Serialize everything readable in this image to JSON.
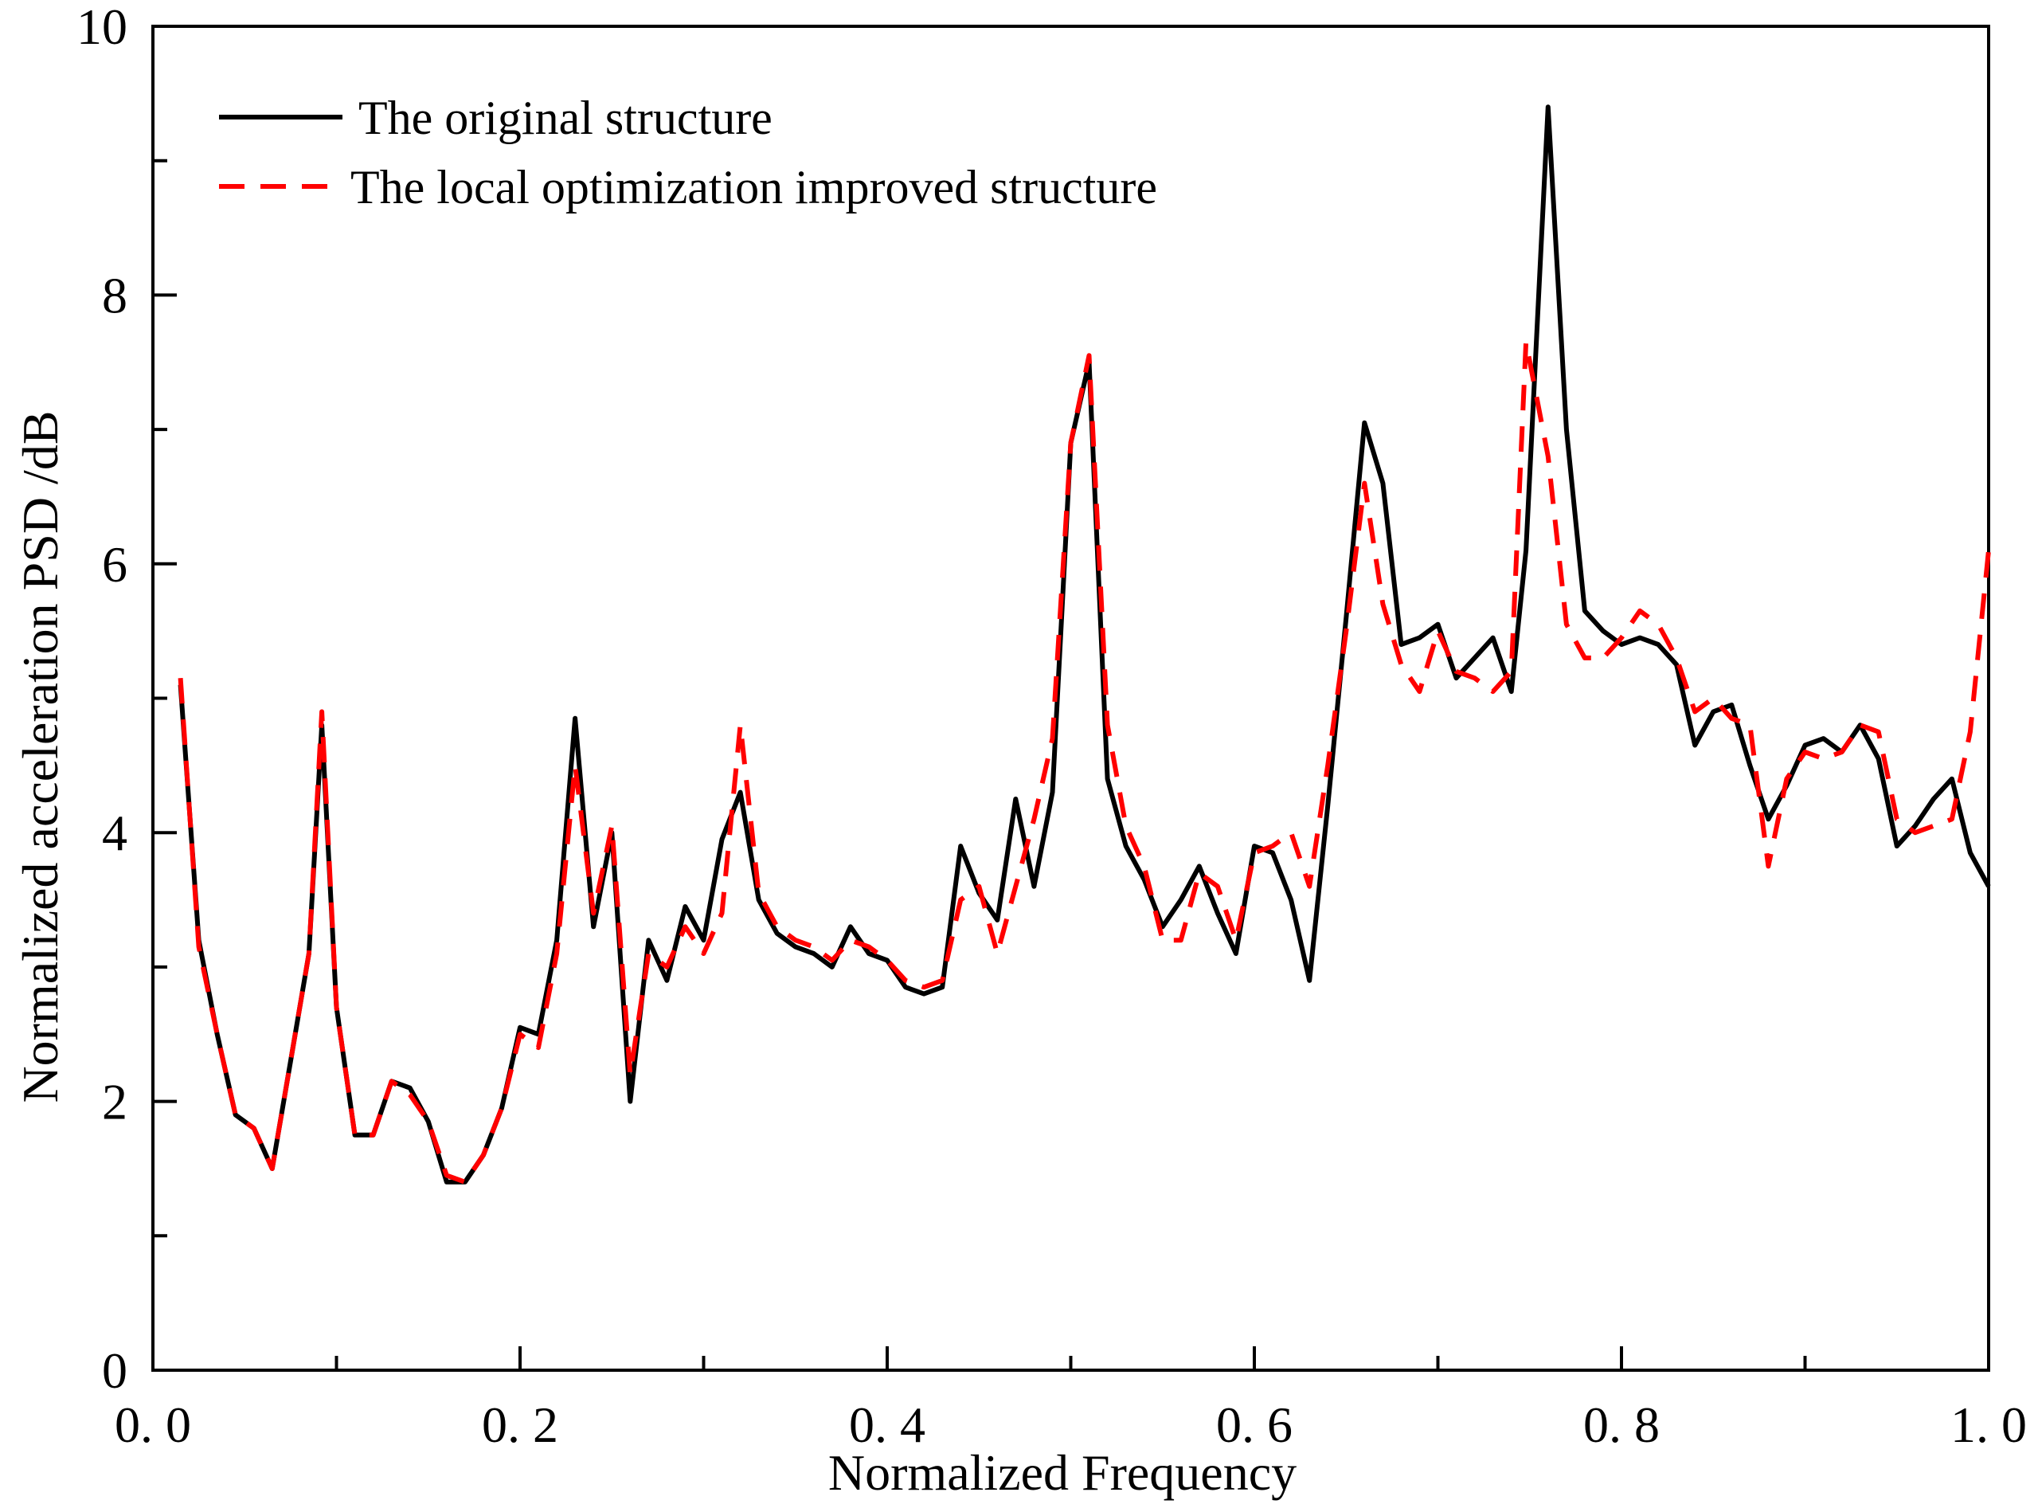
{
  "chart_data": {
    "type": "line",
    "title": "",
    "xlabel": "Normalized Frequency",
    "ylabel": "Normalized acceleration PSD /dB",
    "xlim": [
      0.0,
      1.0
    ],
    "ylim": [
      0,
      10
    ],
    "x_ticks": [
      0.0,
      0.2,
      0.4,
      0.6,
      0.8,
      1.0
    ],
    "x_tick_labels": [
      "0. 0",
      "0. 2",
      "0. 4",
      "0. 6",
      "0. 8",
      "1. 0"
    ],
    "y_ticks": [
      0,
      2,
      4,
      6,
      8,
      10
    ],
    "y_tick_labels": [
      "0",
      "2",
      "4",
      "6",
      "8",
      "10"
    ],
    "y_minor_ticks": [
      1,
      3,
      5,
      7,
      9
    ],
    "x_minor_ticks": [
      0.1,
      0.3,
      0.5,
      0.7,
      0.9
    ],
    "grid": false,
    "legend_position": "top-left",
    "series": [
      {
        "name": "The original structure",
        "color": "#000000",
        "dash": "solid",
        "x": [
          0.015,
          0.025,
          0.035,
          0.045,
          0.055,
          0.065,
          0.075,
          0.085,
          0.092,
          0.1,
          0.11,
          0.12,
          0.13,
          0.14,
          0.15,
          0.16,
          0.17,
          0.18,
          0.19,
          0.2,
          0.21,
          0.22,
          0.23,
          0.24,
          0.25,
          0.26,
          0.27,
          0.28,
          0.29,
          0.3,
          0.31,
          0.32,
          0.33,
          0.34,
          0.35,
          0.36,
          0.37,
          0.38,
          0.39,
          0.4,
          0.41,
          0.42,
          0.43,
          0.44,
          0.45,
          0.46,
          0.47,
          0.48,
          0.49,
          0.5,
          0.51,
          0.52,
          0.53,
          0.54,
          0.55,
          0.56,
          0.57,
          0.58,
          0.59,
          0.6,
          0.61,
          0.62,
          0.63,
          0.64,
          0.65,
          0.66,
          0.67,
          0.68,
          0.69,
          0.7,
          0.71,
          0.72,
          0.73,
          0.74,
          0.748,
          0.76,
          0.77,
          0.78,
          0.79,
          0.8,
          0.81,
          0.82,
          0.83,
          0.84,
          0.85,
          0.86,
          0.87,
          0.88,
          0.89,
          0.9,
          0.91,
          0.92,
          0.93,
          0.94,
          0.95,
          0.96,
          0.97,
          0.98,
          0.99,
          1.0
        ],
        "y": [
          5.1,
          3.2,
          2.5,
          1.9,
          1.8,
          1.5,
          2.3,
          3.1,
          4.8,
          2.7,
          1.75,
          1.75,
          2.15,
          2.1,
          1.85,
          1.4,
          1.4,
          1.6,
          1.95,
          2.55,
          2.5,
          3.2,
          4.85,
          3.3,
          4.0,
          2.0,
          3.2,
          2.9,
          3.45,
          3.2,
          3.95,
          4.3,
          3.5,
          3.25,
          3.15,
          3.1,
          3.0,
          3.3,
          3.1,
          3.05,
          2.85,
          2.8,
          2.85,
          3.9,
          3.55,
          3.35,
          4.25,
          3.6,
          4.3,
          6.9,
          7.5,
          4.4,
          3.9,
          3.65,
          3.3,
          3.5,
          3.75,
          3.4,
          3.1,
          3.9,
          3.85,
          3.5,
          2.9,
          4.2,
          5.6,
          7.05,
          6.6,
          5.4,
          5.45,
          5.55,
          5.15,
          5.3,
          5.45,
          5.05,
          6.1,
          9.4,
          7.0,
          5.65,
          5.5,
          5.4,
          5.45,
          5.4,
          5.25,
          4.65,
          4.9,
          4.95,
          4.5,
          4.1,
          4.35,
          4.65,
          4.7,
          4.6,
          4.8,
          4.55,
          3.9,
          4.05,
          4.25,
          4.4,
          3.85,
          3.6
        ]
      },
      {
        "name": "The local optimization improved structure",
        "color": "#ff0000",
        "dash": "dashed",
        "x": [
          0.015,
          0.025,
          0.035,
          0.045,
          0.055,
          0.065,
          0.075,
          0.085,
          0.092,
          0.1,
          0.11,
          0.12,
          0.13,
          0.14,
          0.15,
          0.16,
          0.17,
          0.18,
          0.19,
          0.2,
          0.21,
          0.22,
          0.23,
          0.24,
          0.25,
          0.26,
          0.27,
          0.28,
          0.29,
          0.3,
          0.31,
          0.32,
          0.33,
          0.34,
          0.35,
          0.36,
          0.37,
          0.38,
          0.39,
          0.4,
          0.41,
          0.42,
          0.43,
          0.44,
          0.45,
          0.46,
          0.47,
          0.48,
          0.49,
          0.5,
          0.51,
          0.52,
          0.53,
          0.54,
          0.55,
          0.56,
          0.57,
          0.58,
          0.59,
          0.6,
          0.61,
          0.62,
          0.63,
          0.64,
          0.65,
          0.66,
          0.67,
          0.68,
          0.69,
          0.7,
          0.71,
          0.72,
          0.73,
          0.74,
          0.748,
          0.76,
          0.77,
          0.78,
          0.79,
          0.8,
          0.81,
          0.82,
          0.83,
          0.84,
          0.85,
          0.86,
          0.87,
          0.88,
          0.89,
          0.9,
          0.91,
          0.92,
          0.93,
          0.94,
          0.95,
          0.96,
          0.97,
          0.98,
          0.99,
          1.0
        ],
        "y": [
          5.15,
          3.15,
          2.5,
          1.9,
          1.8,
          1.5,
          2.3,
          3.1,
          4.9,
          2.7,
          1.75,
          1.75,
          2.15,
          2.05,
          1.85,
          1.45,
          1.4,
          1.6,
          1.95,
          2.5,
          2.4,
          3.1,
          4.5,
          3.4,
          4.05,
          2.2,
          3.1,
          3.0,
          3.3,
          3.1,
          3.4,
          4.8,
          3.55,
          3.3,
          3.2,
          3.15,
          3.05,
          3.2,
          3.15,
          3.05,
          2.9,
          2.85,
          2.9,
          3.5,
          3.6,
          3.1,
          3.6,
          4.1,
          4.7,
          6.9,
          7.55,
          4.8,
          4.05,
          3.75,
          3.2,
          3.2,
          3.7,
          3.6,
          3.2,
          3.85,
          3.9,
          4.0,
          3.6,
          4.5,
          5.5,
          6.6,
          5.7,
          5.25,
          5.05,
          5.5,
          5.2,
          5.15,
          5.05,
          5.2,
          7.65,
          6.8,
          5.55,
          5.3,
          5.3,
          5.45,
          5.65,
          5.55,
          5.3,
          4.9,
          5.0,
          4.85,
          4.8,
          3.75,
          4.4,
          4.6,
          4.55,
          4.6,
          4.8,
          4.75,
          4.1,
          4.0,
          4.05,
          4.1,
          4.75,
          6.1
        ]
      }
    ]
  }
}
